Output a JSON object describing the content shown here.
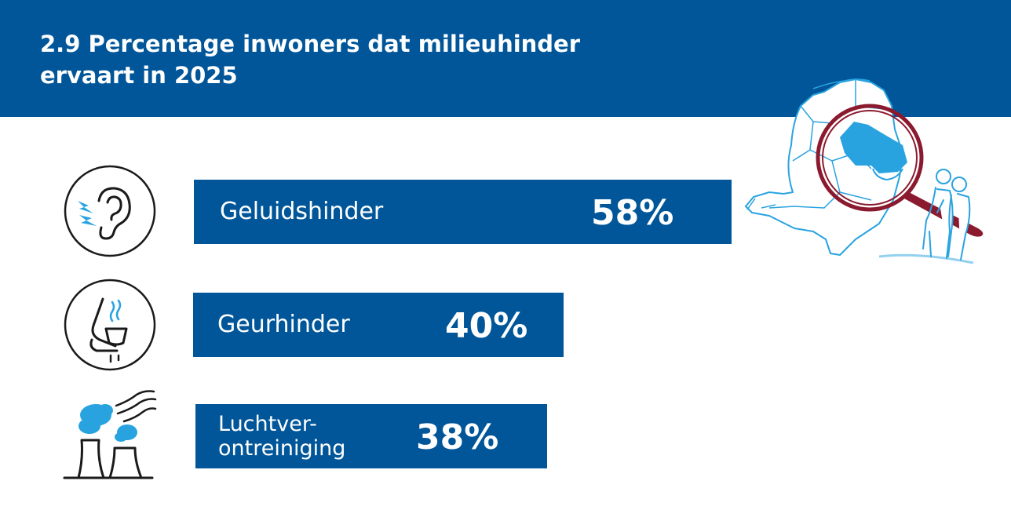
{
  "header": {
    "title_line1": "2.9 Percentage inwoners dat milieuhinder",
    "title_line2": "ervaart in 2025"
  },
  "colors": {
    "bar": "#005699",
    "accent": "#29a3e0",
    "magnifier": "#8b1a2e"
  },
  "icons": [
    "ear-noise-icon",
    "smell-cup-icon",
    "factory-smoke-icon",
    "netherlands-map-magnifier-icon"
  ],
  "chart_data": {
    "type": "bar",
    "orientation": "horizontal",
    "title": "2.9 Percentage inwoners dat milieuhinder ervaart in 2025",
    "categories": [
      "Geluidshinder",
      "Geurhinder",
      "Luchtverontreiniging"
    ],
    "values": [
      58,
      40,
      38
    ],
    "value_labels": [
      "58%",
      "40%",
      "38%"
    ],
    "label_lines": [
      [
        "Geluidshinder"
      ],
      [
        "Geurhinder"
      ],
      [
        "Luchtver-",
        "ontreiniging"
      ]
    ],
    "unit": "%",
    "xlim": [
      0,
      100
    ],
    "grid": false,
    "legend": "none"
  }
}
